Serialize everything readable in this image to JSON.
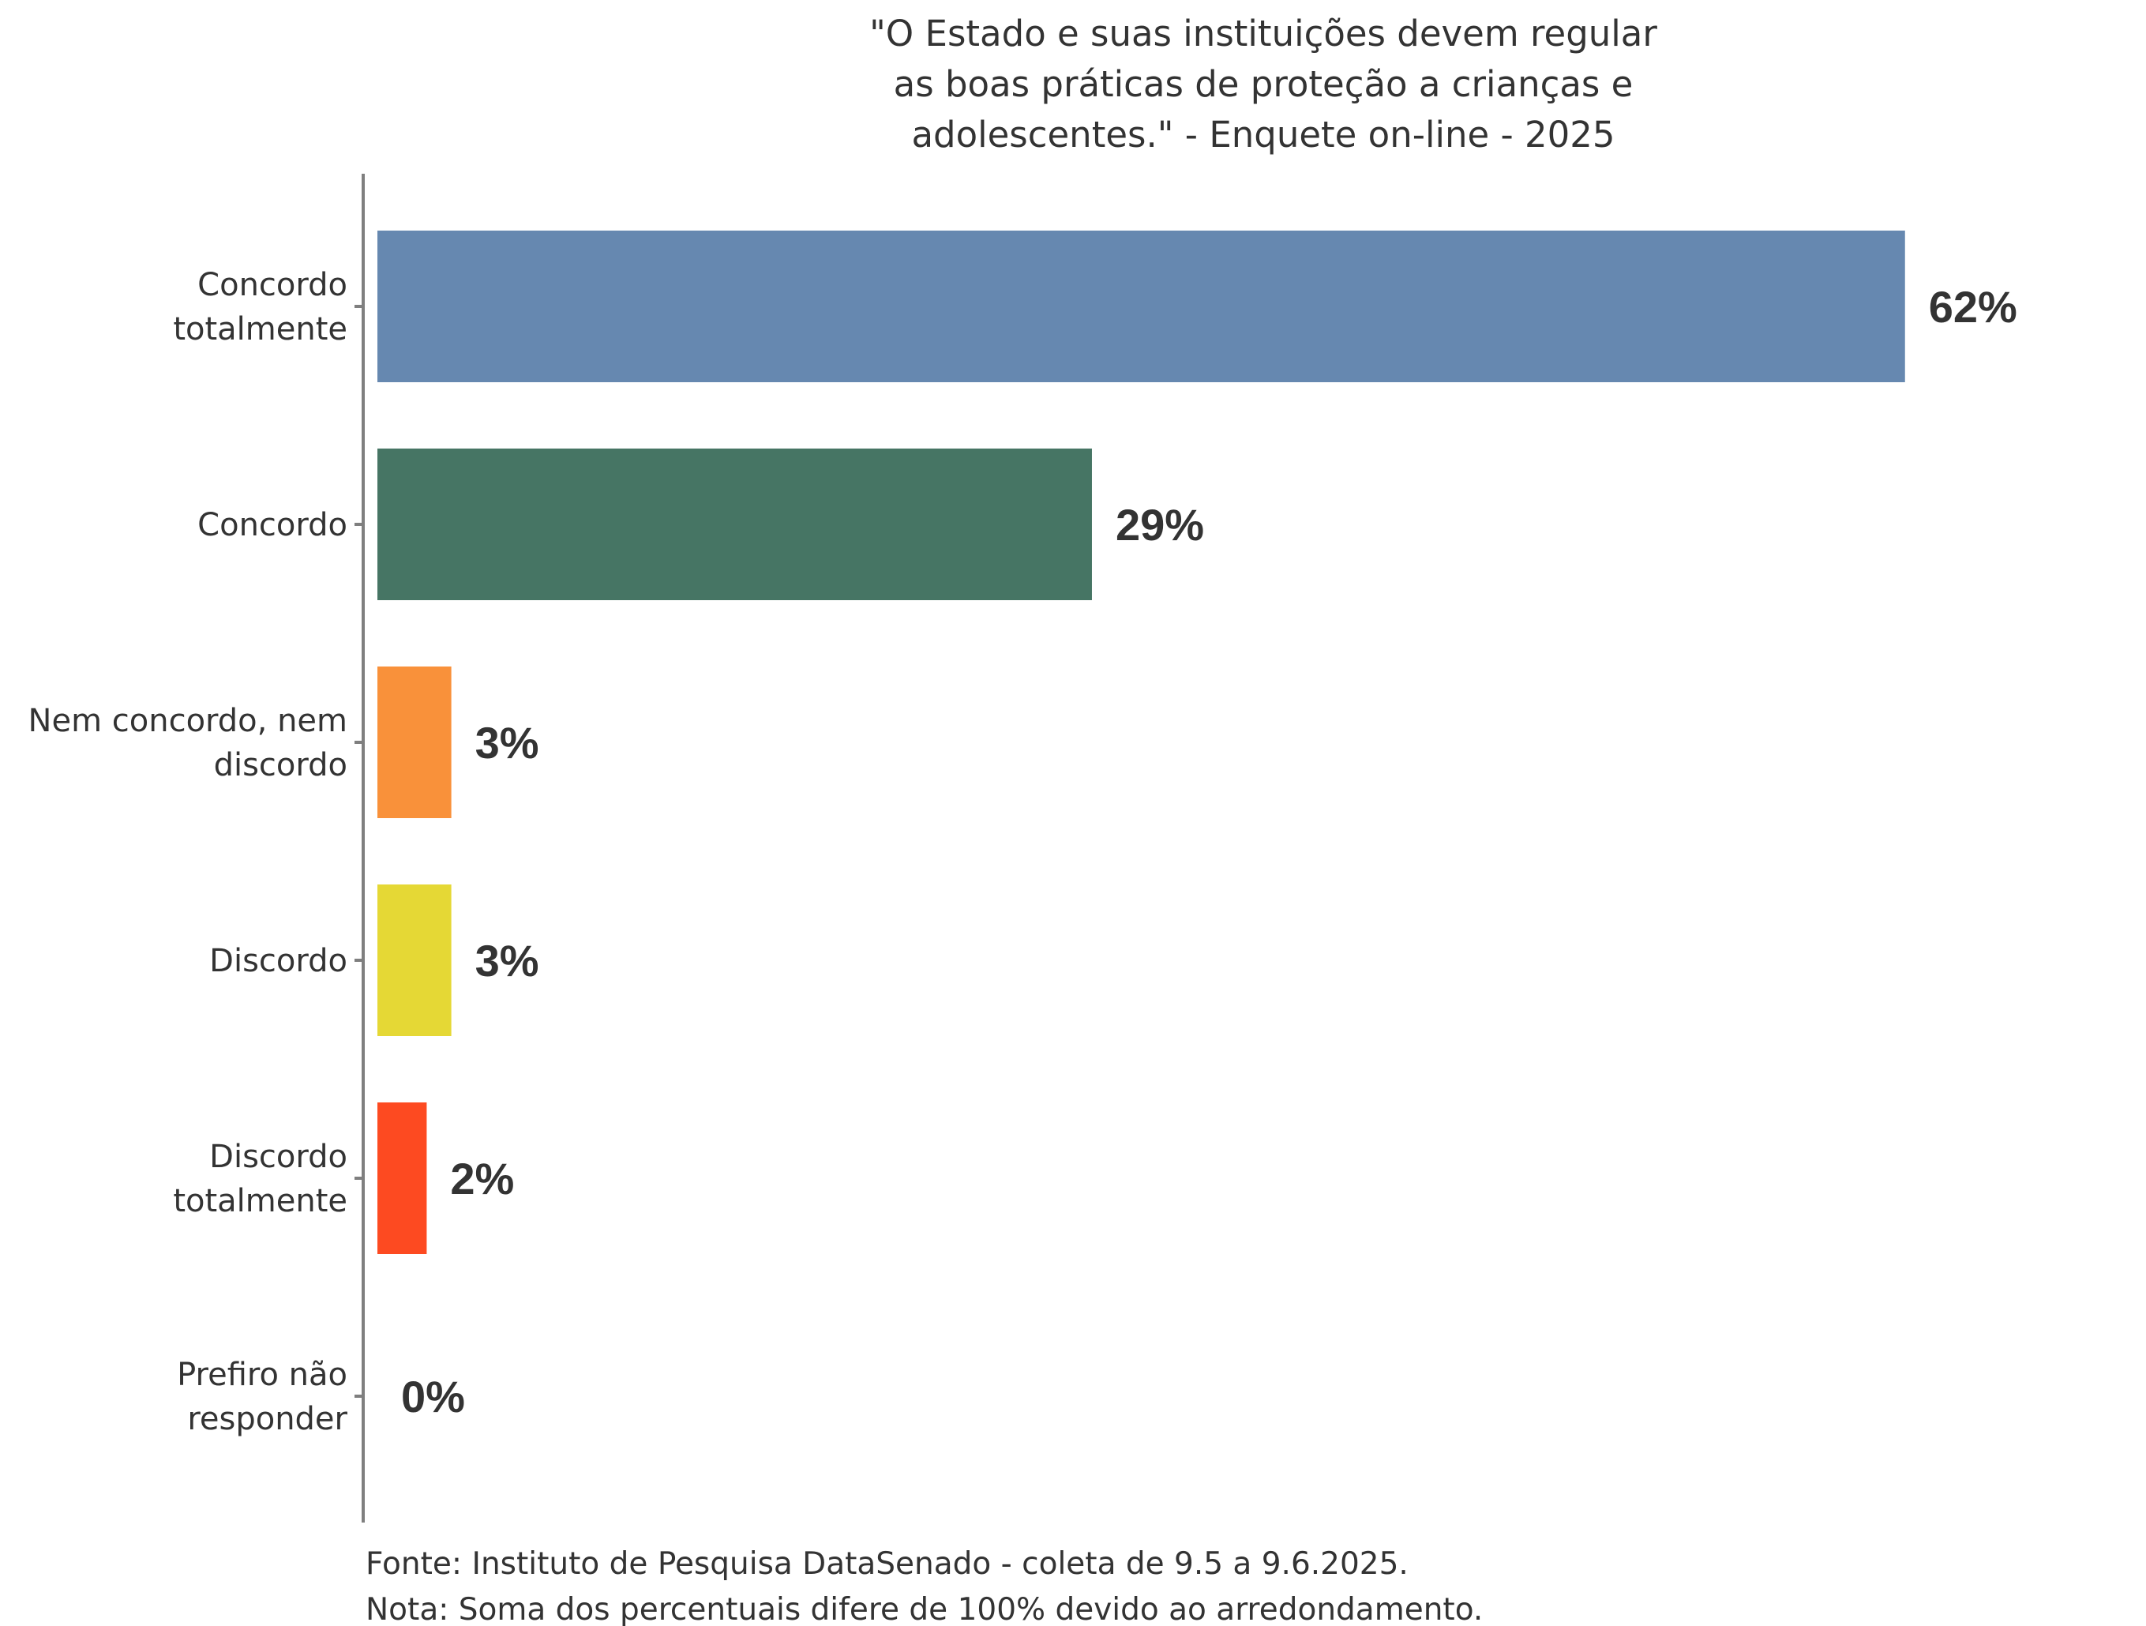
{
  "chart_data": {
    "type": "bar",
    "orientation": "horizontal",
    "title": "\"O Estado e suas instituições devem regular as boas práticas de proteção a crianças e adolescentes.\" - Enquete on-line - 2025",
    "title_lines": [
      "\"O Estado e suas instituições devem regular",
      "as boas práticas de proteção a crianças e",
      "adolescentes.\" - Enquete on-line - 2025"
    ],
    "xlabel": "",
    "ylabel": "",
    "xlim": [
      0,
      68
    ],
    "grid": false,
    "legend": "none",
    "categories": [
      {
        "label_lines": [
          "Concordo",
          "totalmente"
        ]
      },
      {
        "label_lines": [
          "Concordo"
        ]
      },
      {
        "label_lines": [
          "Nem concordo, nem",
          "discordo"
        ]
      },
      {
        "label_lines": [
          "Discordo"
        ]
      },
      {
        "label_lines": [
          "Discordo",
          "totalmente"
        ]
      },
      {
        "label_lines": [
          "Prefiro não",
          "responder"
        ]
      }
    ],
    "values": [
      62,
      29,
      3,
      3,
      2,
      0
    ],
    "value_labels": [
      "62%",
      "29%",
      "3%",
      "3%",
      "2%",
      "0%"
    ],
    "colors": [
      "#6688b0",
      "#467564",
      "#f9913a",
      "#e5d835",
      "#fd4a21",
      "#cccccc"
    ],
    "footer": [
      "Fonte: Instituto de Pesquisa DataSenado - coleta de 9.5 a 9.6.2025.",
      "Nota: Soma dos percentuais difere de 100% devido ao arredondamento."
    ]
  }
}
